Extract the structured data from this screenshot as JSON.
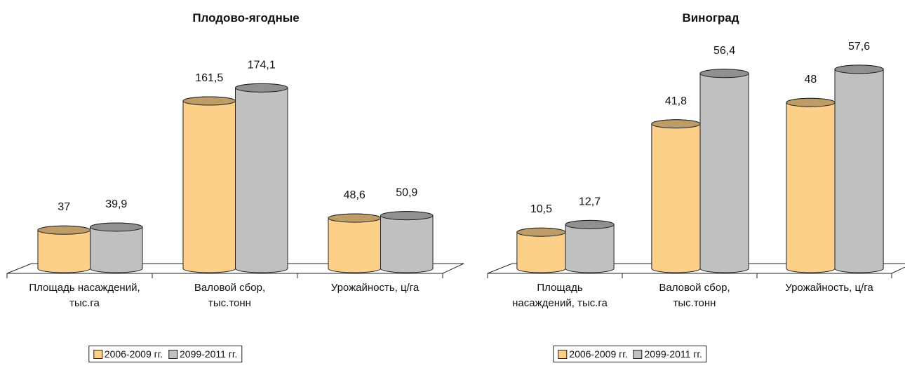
{
  "chart_data": [
    {
      "type": "bar",
      "title": "Плодово-ягодные",
      "categories": [
        "Площадь насаждений,\nтыс.га",
        "Валовой сбор,\nтыс.тонн",
        "Урожайность, ц/га"
      ],
      "series": [
        {
          "name": "2006-2009 гг.",
          "color": "#fdd08a",
          "values": [
            37,
            161.5,
            48.6
          ],
          "value_labels": [
            "37",
            "161,5",
            "48,6"
          ]
        },
        {
          "name": "2099-2011 гг.",
          "color": "#c0c0c0",
          "values": [
            39.9,
            174.1,
            50.9
          ],
          "value_labels": [
            "39,9",
            "174,1",
            "50,9"
          ]
        }
      ],
      "ylim": [
        0,
        200
      ]
    },
    {
      "type": "bar",
      "title": "Виноград",
      "categories": [
        "Площадь\nнасаждений, тыс.га",
        "Валовой сбор,\nтыс.тонн",
        "Урожайность, ц/га"
      ],
      "series": [
        {
          "name": "2006-2009 гг.",
          "color": "#fdd08a",
          "values": [
            10.5,
            41.8,
            48
          ],
          "value_labels": [
            "10,5",
            "41,8",
            "48"
          ]
        },
        {
          "name": "2099-2011 гг.",
          "color": "#c0c0c0",
          "values": [
            12.7,
            56.4,
            57.6
          ],
          "value_labels": [
            "12,7",
            "56,4",
            "57,6"
          ]
        }
      ],
      "ylim": [
        0,
        60
      ]
    }
  ]
}
